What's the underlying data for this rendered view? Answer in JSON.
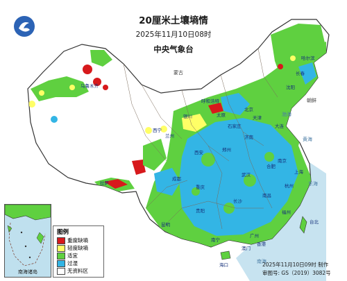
{
  "title": "20厘米土壤墒情",
  "issue_time": "2025年11月10日08时",
  "issuer": "中央气象台",
  "legend": {
    "title": "图例",
    "items": [
      {
        "label": "重度缺墒",
        "color": "#d7191c"
      },
      {
        "label": "轻度缺墒",
        "color": "#ffff66"
      },
      {
        "label": "适宜",
        "color": "#5fd040"
      },
      {
        "label": "过湿",
        "color": "#33b5e5"
      },
      {
        "label": "无资料区",
        "color": "#ffffff"
      }
    ]
  },
  "inset_label": "南海诸岛",
  "footer": {
    "made_time": "2025年11月10日09时 制作",
    "review_no": "审图号: GS（2019）3082号"
  },
  "places": [
    {
      "name": "北京"
    },
    {
      "name": "天津"
    },
    {
      "name": "石家庄"
    },
    {
      "name": "太原"
    },
    {
      "name": "济南"
    },
    {
      "name": "郑州"
    },
    {
      "name": "西安"
    },
    {
      "name": "兰州"
    },
    {
      "name": "西宁"
    },
    {
      "name": "银川"
    },
    {
      "name": "呼和浩特"
    },
    {
      "name": "沈阳"
    },
    {
      "name": "长春"
    },
    {
      "name": "哈尔滨"
    },
    {
      "name": "乌鲁木齐"
    },
    {
      "name": "拉萨"
    },
    {
      "name": "成都"
    },
    {
      "name": "重庆"
    },
    {
      "name": "贵阳"
    },
    {
      "name": "昆明"
    },
    {
      "name": "南宁"
    },
    {
      "name": "广州"
    },
    {
      "name": "长沙"
    },
    {
      "name": "武汉"
    },
    {
      "name": "合肥"
    },
    {
      "name": "南京"
    },
    {
      "name": "上海"
    },
    {
      "name": "杭州"
    },
    {
      "name": "南昌"
    },
    {
      "name": "福州"
    },
    {
      "name": "台北"
    },
    {
      "name": "香港"
    },
    {
      "name": "澳门"
    },
    {
      "name": "海口"
    },
    {
      "name": "大连"
    }
  ],
  "seas": [
    {
      "name": "渤海"
    },
    {
      "name": "黄海"
    },
    {
      "name": "东海"
    },
    {
      "name": "南海"
    }
  ],
  "countries": [
    {
      "name": "蒙古"
    },
    {
      "name": "朝鲜"
    }
  ]
}
